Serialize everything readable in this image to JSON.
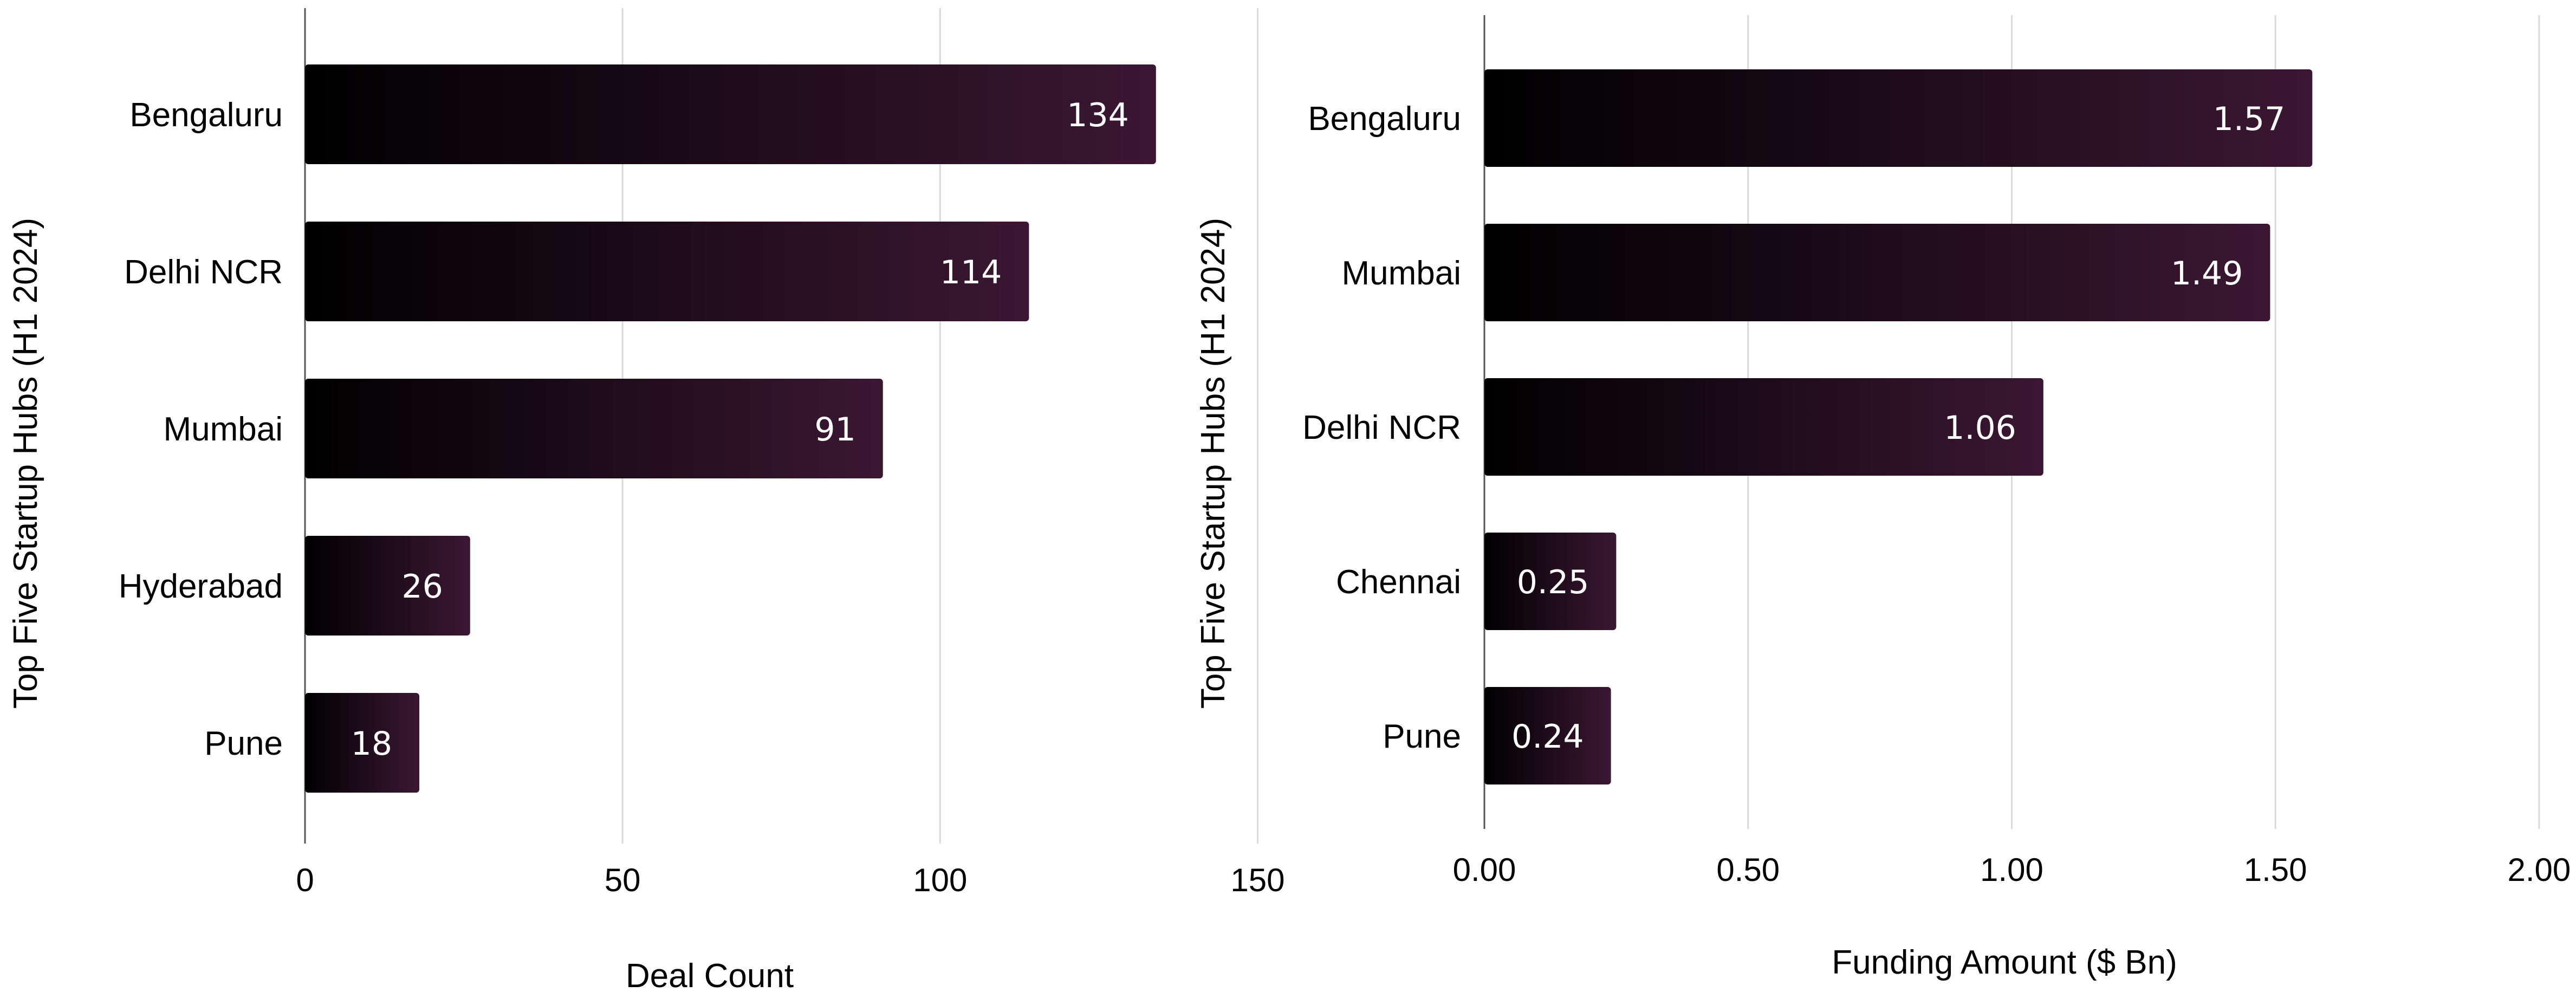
{
  "chart_data": [
    {
      "type": "bar",
      "orientation": "horizontal",
      "title": "",
      "xlabel": "Deal Count",
      "ylabel": "Top Five Startup Hubs (H1 2024)",
      "categories": [
        "Bengaluru",
        "Delhi NCR",
        "Mumbai",
        "Hyderabad",
        "Pune"
      ],
      "values": [
        134,
        114,
        91,
        26,
        18
      ],
      "value_labels": [
        "134",
        "114",
        "91",
        "26",
        "18"
      ],
      "xlim": [
        0,
        155
      ],
      "xticks": [
        0,
        50,
        100,
        150
      ],
      "xtick_labels": [
        "0",
        "50",
        "100",
        "150"
      ],
      "grid": "vertical",
      "legend": "none"
    },
    {
      "type": "bar",
      "orientation": "horizontal",
      "title": "",
      "xlabel": "Funding Amount ($ Bn)",
      "ylabel": "Top Five Startup Hubs (H1 2024)",
      "categories": [
        "Bengaluru",
        "Mumbai",
        "Delhi NCR",
        "Chennai",
        "Pune"
      ],
      "values": [
        1.57,
        1.49,
        1.06,
        0.25,
        0.24
      ],
      "value_labels": [
        "1.57",
        "1.49",
        "1.06",
        "0.25",
        "0.24"
      ],
      "xlim": [
        0,
        2.07
      ],
      "xticks": [
        0,
        0.5,
        1.0,
        1.5,
        2.0
      ],
      "xtick_labels": [
        "0.00",
        "0.50",
        "1.00",
        "1.50",
        "2.00"
      ],
      "grid": "vertical",
      "legend": "none"
    }
  ],
  "colors": {
    "bar_gradient_start": "#000000",
    "bar_gradient_end": "#3b1733",
    "grid": "#d9d9d9",
    "axis": "#555555",
    "text": "#000000",
    "value_label": "#ffffff"
  }
}
